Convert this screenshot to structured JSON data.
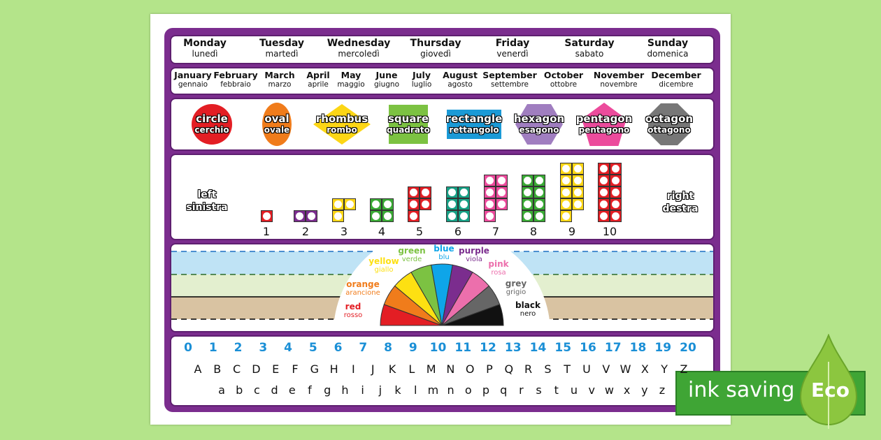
{
  "days": [
    {
      "en": "Monday",
      "it": "lunedì"
    },
    {
      "en": "Tuesday",
      "it": "martedì"
    },
    {
      "en": "Wednesday",
      "it": "mercoledì"
    },
    {
      "en": "Thursday",
      "it": "giovedì"
    },
    {
      "en": "Friday",
      "it": "venerdì"
    },
    {
      "en": "Saturday",
      "it": "sabato"
    },
    {
      "en": "Sunday",
      "it": "domenica"
    }
  ],
  "months": [
    {
      "en": "January",
      "it": "gennaio"
    },
    {
      "en": "February",
      "it": "febbraio"
    },
    {
      "en": "March",
      "it": "marzo"
    },
    {
      "en": "April",
      "it": "aprile"
    },
    {
      "en": "May",
      "it": "maggio"
    },
    {
      "en": "June",
      "it": "giugno"
    },
    {
      "en": "July",
      "it": "luglio"
    },
    {
      "en": "August",
      "it": "agosto"
    },
    {
      "en": "September",
      "it": "settembre"
    },
    {
      "en": "October",
      "it": "ottobre"
    },
    {
      "en": "November",
      "it": "novembre"
    },
    {
      "en": "December",
      "it": "dicembre"
    }
  ],
  "shapes": [
    {
      "en": "circle",
      "it": "cerchio",
      "color": "#e31e24"
    },
    {
      "en": "oval",
      "it": "ovale",
      "color": "#f07c1b"
    },
    {
      "en": "rhombus",
      "it": "rombo",
      "color": "#fcd615"
    },
    {
      "en": "square",
      "it": "quadrato",
      "color": "#7cc242"
    },
    {
      "en": "rectangle",
      "it": "rettangolo",
      "color": "#1b9ad6"
    },
    {
      "en": "hexagon",
      "it": "esagono",
      "color": "#a07ec0"
    },
    {
      "en": "pentagon",
      "it": "pentagono",
      "color": "#ec4b9c"
    },
    {
      "en": "octagon",
      "it": "ottagono",
      "color": "#777777"
    }
  ],
  "hands": {
    "left": {
      "en": "left",
      "it": "sinistra",
      "color": "#8fd0f0"
    },
    "right": {
      "en": "right",
      "it": "destra",
      "color": "#f7a04a"
    }
  },
  "frames": [
    {
      "n": "1",
      "color": "#e31e24"
    },
    {
      "n": "2",
      "color": "#7b2d8e"
    },
    {
      "n": "3",
      "color": "#fcd615"
    },
    {
      "n": "4",
      "color": "#3aaa35"
    },
    {
      "n": "5",
      "color": "#e31e24"
    },
    {
      "n": "6",
      "color": "#16a085"
    },
    {
      "n": "7",
      "color": "#ec4b9c"
    },
    {
      "n": "8",
      "color": "#3aaa35"
    },
    {
      "n": "9",
      "color": "#fcd615"
    },
    {
      "n": "10",
      "color": "#e31e24"
    }
  ],
  "colours": [
    {
      "en": "red",
      "it": "rosso",
      "color": "#e31e24"
    },
    {
      "en": "orange",
      "it": "arancione",
      "color": "#f07c1b"
    },
    {
      "en": "yellow",
      "it": "giallo",
      "color": "#fde012"
    },
    {
      "en": "green",
      "it": "verde",
      "color": "#7cc242"
    },
    {
      "en": "blue",
      "it": "blu",
      "color": "#0ea5e9"
    },
    {
      "en": "purple",
      "it": "viola",
      "color": "#7b2d8e"
    },
    {
      "en": "pink",
      "it": "rosa",
      "color": "#ec6fac"
    },
    {
      "en": "grey",
      "it": "grigio",
      "color": "#666666"
    },
    {
      "en": "black",
      "it": "nero",
      "color": "#111111"
    }
  ],
  "numbers": [
    "0",
    "1",
    "2",
    "3",
    "4",
    "5",
    "6",
    "7",
    "8",
    "9",
    "10",
    "11",
    "12",
    "13",
    "14",
    "15",
    "16",
    "17",
    "18",
    "19",
    "20"
  ],
  "upper": [
    "A",
    "B",
    "C",
    "D",
    "E",
    "F",
    "G",
    "H",
    "I",
    "J",
    "K",
    "L",
    "M",
    "N",
    "O",
    "P",
    "Q",
    "R",
    "S",
    "T",
    "U",
    "V",
    "W",
    "X",
    "Y",
    "Z"
  ],
  "lower": [
    "a",
    "b",
    "c",
    "d",
    "e",
    "f",
    "g",
    "h",
    "i",
    "j",
    "k",
    "l",
    "m",
    "n",
    "o",
    "p",
    "q",
    "r",
    "s",
    "t",
    "u",
    "v",
    "w",
    "x",
    "y",
    "z"
  ],
  "eco": {
    "text": "ink saving",
    "badge": "Eco",
    "color": "#3fa535"
  }
}
